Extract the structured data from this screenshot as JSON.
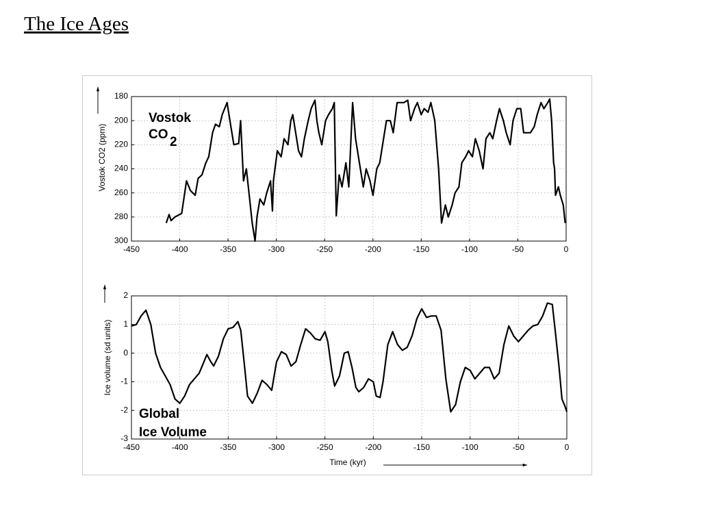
{
  "slide_title": "The Ice Ages",
  "chart_data": [
    {
      "type": "line",
      "ylabel": "Vostok CO2 (ppm)",
      "annotation": [
        "Vostok",
        "CO",
        "2"
      ],
      "xlim": [
        -450,
        0
      ],
      "xticks": [
        -450,
        -400,
        -350,
        -300,
        -250,
        -200,
        -150,
        -100,
        -50,
        0
      ],
      "ylim": [
        180,
        300
      ],
      "yticks": [
        180,
        200,
        220,
        240,
        260,
        280,
        300
      ],
      "y_reversed": true,
      "grid": true,
      "x": [
        -414,
        -411,
        -409,
        -405,
        -398,
        -393,
        -389,
        -384,
        -381,
        -377,
        -373,
        -370,
        -366,
        -363,
        -359,
        -356,
        -351,
        -347,
        -344,
        -339,
        -337,
        -334,
        -331,
        -327,
        -325,
        -322,
        -320,
        -317,
        -313,
        -310,
        -306,
        -304,
        -303,
        -299,
        -295,
        -292,
        -288,
        -285,
        -283,
        -280,
        -277,
        -274,
        -271,
        -267,
        -264,
        -260,
        -258,
        -256,
        -253,
        -249,
        -246,
        -242,
        -240,
        -238,
        -235,
        -232,
        -228,
        -225,
        -221,
        -218,
        -214,
        -210,
        -207,
        -203,
        -200,
        -196,
        -193,
        -189,
        -186,
        -182,
        -179,
        -175,
        -168,
        -164,
        -161,
        -157,
        -154,
        -150,
        -147,
        -143,
        -140,
        -136,
        -132,
        -129,
        -125,
        -122,
        -118,
        -115,
        -111,
        -108,
        -104,
        -101,
        -97,
        -94,
        -90,
        -86,
        -83,
        -79,
        -76,
        -72,
        -69,
        -65,
        -62,
        -58,
        -55,
        -51,
        -47,
        -44,
        -40,
        -37,
        -33,
        -30,
        -26,
        -23,
        -19,
        -17,
        -15,
        -13,
        -12,
        -11,
        -8,
        -6,
        -3,
        -1
      ],
      "series": [
        {
          "color": "#000000",
          "values": [
            285,
            278,
            283,
            280,
            277,
            250,
            258,
            262,
            248,
            245,
            235,
            230,
            210,
            203,
            205,
            195,
            185,
            205,
            220,
            219,
            200,
            250,
            240,
            270,
            285,
            300,
            280,
            265,
            270,
            260,
            250,
            275,
            250,
            225,
            230,
            215,
            220,
            200,
            195,
            210,
            225,
            230,
            215,
            200,
            190,
            183,
            200,
            210,
            220,
            200,
            195,
            190,
            185,
            279,
            245,
            255,
            235,
            255,
            185,
            215,
            235,
            255,
            240,
            250,
            262,
            240,
            235,
            215,
            200,
            200,
            210,
            185,
            185,
            183,
            200,
            190,
            185,
            195,
            190,
            193,
            185,
            200,
            240,
            285,
            270,
            280,
            270,
            260,
            255,
            235,
            230,
            225,
            230,
            215,
            225,
            240,
            215,
            210,
            215,
            200,
            190,
            200,
            210,
            220,
            200,
            190,
            190,
            210,
            210,
            210,
            205,
            195,
            185,
            190,
            185,
            182,
            200,
            235,
            240,
            262,
            255,
            262,
            270,
            285
          ]
        }
      ]
    },
    {
      "type": "line",
      "ylabel": "Ice volume (sd units)",
      "xlabel": "Time (kyr)",
      "annotation": [
        "Global",
        "Ice Volume"
      ],
      "xlim": [
        -450,
        0
      ],
      "xticks": [
        -450,
        -400,
        -350,
        -300,
        -250,
        -200,
        -150,
        -100,
        -50,
        0
      ],
      "ylim": [
        -3,
        2
      ],
      "yticks": [
        -3,
        -2,
        -1,
        0,
        1,
        2
      ],
      "grid": true,
      "x": [
        -450,
        -445,
        -440,
        -435,
        -430,
        -425,
        -420,
        -415,
        -410,
        -405,
        -400,
        -395,
        -390,
        -385,
        -380,
        -375,
        -372,
        -368,
        -365,
        -360,
        -355,
        -350,
        -345,
        -340,
        -337,
        -333,
        -330,
        -325,
        -320,
        -315,
        -310,
        -305,
        -300,
        -295,
        -290,
        -285,
        -280,
        -275,
        -270,
        -265,
        -260,
        -255,
        -250,
        -247,
        -243,
        -240,
        -235,
        -230,
        -226,
        -222,
        -218,
        -215,
        -210,
        -205,
        -200,
        -197,
        -193,
        -190,
        -185,
        -180,
        -175,
        -170,
        -165,
        -160,
        -155,
        -150,
        -145,
        -140,
        -135,
        -130,
        -125,
        -120,
        -115,
        -110,
        -105,
        -100,
        -95,
        -90,
        -85,
        -80,
        -75,
        -70,
        -65,
        -60,
        -55,
        -50,
        -45,
        -40,
        -35,
        -30,
        -25,
        -20,
        -15,
        -12,
        -8,
        -5,
        -2,
        0
      ],
      "series": [
        {
          "color": "#000000",
          "values": [
            0.95,
            1.0,
            1.3,
            1.5,
            1.0,
            0.0,
            -0.5,
            -0.8,
            -1.1,
            -1.6,
            -1.75,
            -1.5,
            -1.1,
            -0.9,
            -0.7,
            -0.3,
            -0.05,
            -0.3,
            -0.45,
            -0.1,
            0.5,
            0.85,
            0.9,
            1.1,
            0.8,
            -0.5,
            -1.5,
            -1.75,
            -1.4,
            -0.95,
            -1.1,
            -1.3,
            -0.3,
            0.05,
            -0.05,
            -0.45,
            -0.3,
            0.3,
            0.85,
            0.7,
            0.5,
            0.45,
            0.75,
            0.4,
            -0.6,
            -1.15,
            -0.8,
            0.0,
            0.05,
            -0.5,
            -1.2,
            -1.35,
            -1.2,
            -0.9,
            -1.0,
            -1.5,
            -1.55,
            -1.0,
            0.3,
            0.75,
            0.3,
            0.1,
            0.2,
            0.6,
            1.2,
            1.55,
            1.25,
            1.3,
            1.3,
            0.8,
            -0.9,
            -2.05,
            -1.8,
            -1.0,
            -0.5,
            -0.6,
            -0.9,
            -0.7,
            -0.5,
            -0.5,
            -0.9,
            -0.7,
            0.3,
            0.95,
            0.6,
            0.4,
            0.6,
            0.8,
            0.95,
            1.0,
            1.3,
            1.75,
            1.7,
            0.8,
            -0.5,
            -1.6,
            -1.85,
            -2.05
          ]
        }
      ]
    }
  ]
}
